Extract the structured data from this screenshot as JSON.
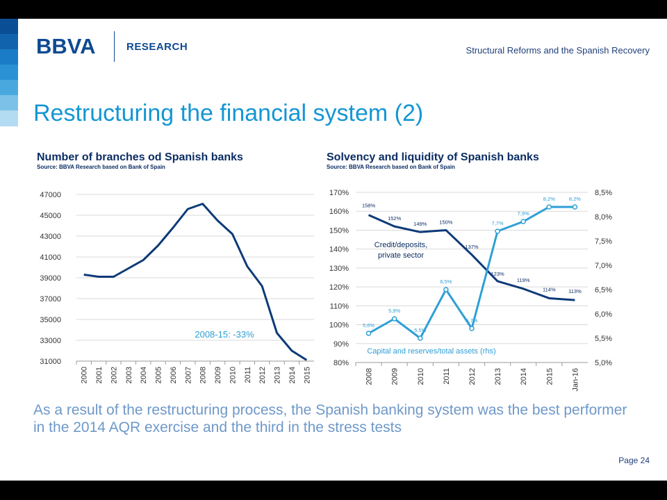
{
  "header": {
    "logo": "BBVA",
    "research": "RESEARCH",
    "subtitle": "Structural Reforms and the Spanish Recovery"
  },
  "title": "Restructuring the financial system (2)",
  "body_text": "As a result of the restructuring process, the Spanish banking system was the best performer in the 2014 AQR exercise and the third in the stress tests",
  "page_label": "Page 24",
  "colors": {
    "brand": "#0e4a92",
    "title": "#1496d4",
    "dark_series": "#0d3a78",
    "light_series": "#2d9fd6",
    "body_text": "#6e98c9",
    "stripes": [
      "#0a4f96",
      "#1263ad",
      "#1a7cc6",
      "#2a92d4",
      "#49a9df",
      "#7cc2e8",
      "#b3dbf1"
    ]
  },
  "chart_data": [
    {
      "type": "line",
      "title": "Number of branches od Spanish banks",
      "subtitle": "Source: BBVA Research based on Bank of Spain",
      "categories": [
        "2000",
        "2001",
        "2002",
        "2003",
        "2004",
        "2005",
        "2006",
        "2007",
        "2008",
        "2009",
        "2010",
        "2011",
        "2012",
        "2013",
        "2014",
        "2015"
      ],
      "series": [
        {
          "values": [
            39300,
            39100,
            39100,
            39900,
            40700,
            42100,
            43800,
            45600,
            46100,
            44500,
            43200,
            40100,
            38200,
            33700,
            32000,
            31100
          ]
        }
      ],
      "y_ticks": [
        "31000",
        "33000",
        "35000",
        "37000",
        "39000",
        "41000",
        "43000",
        "45000",
        "47000"
      ],
      "ylim": [
        31000,
        47000
      ],
      "grid": true,
      "annotation": "2008-15: -33%"
    },
    {
      "type": "line",
      "title": "Solvency and liquidity of Spanish banks",
      "subtitle": "Source: BBVA Research based on Bank of Spain",
      "categories": [
        "2008",
        "2009",
        "2010",
        "2011",
        "2012",
        "2013",
        "2014",
        "2015",
        "Jan-16"
      ],
      "series": [
        {
          "name": "Credit/deposits, private sector",
          "axis": "left",
          "values": [
            158,
            152,
            149,
            150,
            137,
            123,
            119,
            114,
            113
          ],
          "labels": [
            "158%",
            "152%",
            "149%",
            "150%",
            "137%",
            "123%",
            "119%",
            "114%",
            "113%"
          ]
        },
        {
          "name": "Capital and reserves/total assets (rhs)",
          "axis": "right",
          "values": [
            5.6,
            5.9,
            5.5,
            6.5,
            5.7,
            7.7,
            7.9,
            8.2,
            8.2
          ],
          "labels": [
            "5,6%",
            "5,9%",
            "5,5%",
            "6,5%",
            "5,7%",
            "7,7%",
            "7,9%",
            "8,2%",
            "8,2%"
          ]
        }
      ],
      "y_ticks_left": [
        "80%",
        "90%",
        "100%",
        "110%",
        "120%",
        "130%",
        "140%",
        "150%",
        "160%",
        "170%"
      ],
      "y_ticks_right": [
        "5,0%",
        "5,5%",
        "6,0%",
        "6,5%",
        "7,0%",
        "7,5%",
        "8,0%",
        "8,5%"
      ],
      "ylim_left": [
        80,
        170
      ],
      "ylim_right": [
        5.0,
        8.5
      ],
      "grid": true,
      "series_label_1": [
        "Credit/deposits,",
        "private sector"
      ],
      "series_label_2": "Capital and reserves/total assets (rhs)"
    }
  ]
}
